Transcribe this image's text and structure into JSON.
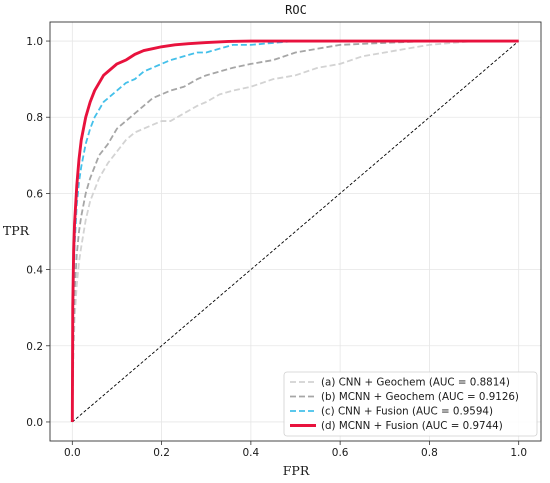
{
  "chart_data": {
    "type": "line",
    "title": "ROC",
    "xlabel": "FPR",
    "ylabel": "TPR",
    "xlim": [
      -0.05,
      1.05
    ],
    "ylim": [
      -0.05,
      1.05
    ],
    "xticks": [
      "0.0",
      "0.2",
      "0.4",
      "0.6",
      "0.8",
      "1.0"
    ],
    "yticks": [
      "0.0",
      "0.2",
      "0.4",
      "0.6",
      "0.8",
      "1.0"
    ],
    "grid": true,
    "legend_position": "lower-right",
    "reference_line": {
      "x": [
        0,
        1
      ],
      "y": [
        0,
        1
      ],
      "style": "dashed",
      "color": "#000000"
    },
    "series": [
      {
        "name": "(a) CNN + Geochem (AUC = 0.8814)",
        "color": "#d3d3d3",
        "style": "dashed",
        "x": [
          0,
          0.002,
          0.005,
          0.01,
          0.015,
          0.02,
          0.03,
          0.04,
          0.05,
          0.06,
          0.08,
          0.1,
          0.12,
          0.14,
          0.16,
          0.18,
          0.2,
          0.22,
          0.25,
          0.28,
          0.3,
          0.33,
          0.36,
          0.4,
          0.45,
          0.5,
          0.55,
          0.6,
          0.65,
          0.7,
          0.75,
          0.8,
          0.85,
          0.9,
          1.0
        ],
        "y": [
          0,
          0.15,
          0.27,
          0.36,
          0.42,
          0.46,
          0.53,
          0.58,
          0.61,
          0.64,
          0.68,
          0.71,
          0.74,
          0.76,
          0.77,
          0.78,
          0.79,
          0.79,
          0.81,
          0.83,
          0.84,
          0.86,
          0.87,
          0.88,
          0.9,
          0.91,
          0.93,
          0.94,
          0.96,
          0.97,
          0.98,
          0.99,
          0.995,
          1.0,
          1.0
        ]
      },
      {
        "name": "(b) MCNN + Geochem (AUC = 0.9126)",
        "color": "#a6a6a6",
        "style": "dashed",
        "x": [
          0,
          0.002,
          0.005,
          0.01,
          0.015,
          0.02,
          0.03,
          0.04,
          0.05,
          0.06,
          0.08,
          0.1,
          0.12,
          0.14,
          0.16,
          0.18,
          0.2,
          0.22,
          0.25,
          0.28,
          0.3,
          0.33,
          0.36,
          0.4,
          0.45,
          0.5,
          0.55,
          0.6,
          0.7,
          0.8,
          1.0
        ],
        "y": [
          0,
          0.2,
          0.34,
          0.44,
          0.5,
          0.54,
          0.6,
          0.64,
          0.67,
          0.7,
          0.73,
          0.77,
          0.79,
          0.81,
          0.83,
          0.85,
          0.86,
          0.87,
          0.88,
          0.9,
          0.91,
          0.92,
          0.93,
          0.94,
          0.95,
          0.97,
          0.98,
          0.99,
          0.995,
          1.0,
          1.0
        ]
      },
      {
        "name": "(c) CNN + Fusion (AUC = 0.9594)",
        "color": "#44c0ea",
        "style": "dashed",
        "x": [
          0,
          0.002,
          0.005,
          0.01,
          0.015,
          0.02,
          0.03,
          0.04,
          0.05,
          0.06,
          0.07,
          0.08,
          0.1,
          0.12,
          0.14,
          0.16,
          0.18,
          0.2,
          0.22,
          0.25,
          0.28,
          0.3,
          0.33,
          0.36,
          0.4,
          0.45,
          0.5,
          1.0
        ],
        "y": [
          0,
          0.3,
          0.46,
          0.57,
          0.63,
          0.67,
          0.73,
          0.77,
          0.8,
          0.82,
          0.84,
          0.85,
          0.87,
          0.89,
          0.9,
          0.92,
          0.93,
          0.94,
          0.95,
          0.96,
          0.97,
          0.97,
          0.98,
          0.99,
          0.99,
          0.995,
          1.0,
          1.0
        ]
      },
      {
        "name": "(d) MCNN + Fusion (AUC = 0.9744)",
        "color": "#e8123d",
        "style": "solid",
        "x": [
          0,
          0.001,
          0.003,
          0.005,
          0.01,
          0.015,
          0.02,
          0.03,
          0.04,
          0.05,
          0.06,
          0.07,
          0.08,
          0.1,
          0.12,
          0.14,
          0.16,
          0.18,
          0.2,
          0.23,
          0.26,
          0.3,
          0.35,
          0.4,
          1.0
        ],
        "y": [
          0,
          0.3,
          0.45,
          0.52,
          0.62,
          0.69,
          0.74,
          0.8,
          0.84,
          0.87,
          0.89,
          0.91,
          0.92,
          0.94,
          0.95,
          0.965,
          0.975,
          0.98,
          0.985,
          0.99,
          0.993,
          0.996,
          0.999,
          1.0,
          1.0
        ]
      }
    ]
  }
}
